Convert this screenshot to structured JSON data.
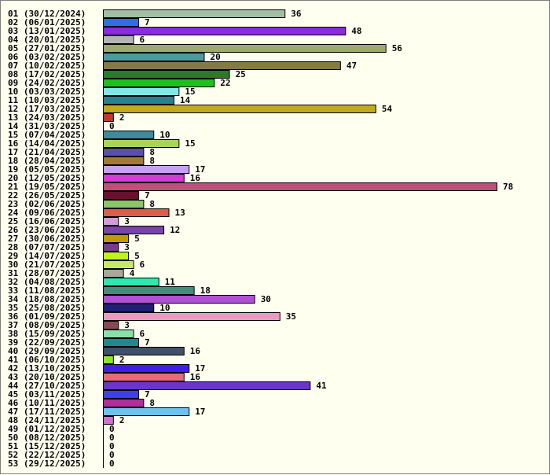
{
  "chart_data": {
    "type": "bar",
    "orientation": "horizontal",
    "categories": [
      "01 (30/12/2024)",
      "02 (06/01/2025)",
      "03 (13/01/2025)",
      "04 (20/01/2025)",
      "05 (27/01/2025)",
      "06 (03/02/2025)",
      "07 (10/02/2025)",
      "08 (17/02/2025)",
      "09 (24/02/2025)",
      "10 (03/03/2025)",
      "11 (10/03/2025)",
      "12 (17/03/2025)",
      "13 (24/03/2025)",
      "14 (31/03/2025)",
      "15 (07/04/2025)",
      "16 (14/04/2025)",
      "17 (21/04/2025)",
      "18 (28/04/2025)",
      "19 (05/05/2025)",
      "20 (12/05/2025)",
      "21 (19/05/2025)",
      "22 (26/05/2025)",
      "23 (02/06/2025)",
      "24 (09/06/2025)",
      "25 (16/06/2025)",
      "26 (23/06/2025)",
      "27 (30/06/2025)",
      "28 (07/07/2025)",
      "29 (14/07/2025)",
      "30 (21/07/2025)",
      "31 (28/07/2025)",
      "32 (04/08/2025)",
      "33 (11/08/2025)",
      "34 (18/08/2025)",
      "35 (25/08/2025)",
      "36 (01/09/2025)",
      "37 (08/09/2025)",
      "38 (15/09/2025)",
      "39 (22/09/2025)",
      "40 (29/09/2025)",
      "41 (06/10/2025)",
      "42 (13/10/2025)",
      "43 (20/10/2025)",
      "44 (27/10/2025)",
      "45 (03/11/2025)",
      "46 (10/11/2025)",
      "47 (17/11/2025)",
      "48 (24/11/2025)",
      "49 (01/12/2025)",
      "50 (08/12/2025)",
      "51 (15/12/2025)",
      "52 (22/12/2025)",
      "53 (29/12/2025)"
    ],
    "values": [
      36,
      7,
      48,
      6,
      56,
      20,
      47,
      25,
      22,
      15,
      14,
      54,
      2,
      0,
      10,
      15,
      8,
      8,
      17,
      16,
      78,
      7,
      8,
      13,
      3,
      12,
      5,
      3,
      5,
      6,
      4,
      11,
      18,
      30,
      10,
      35,
      3,
      6,
      7,
      16,
      2,
      17,
      16,
      41,
      7,
      8,
      17,
      2,
      0,
      0,
      0,
      0,
      0
    ],
    "colors": [
      "#a3bfa3",
      "#2f6ee8",
      "#8a2be2",
      "#b4b4b4",
      "#9caa70",
      "#4a9c9c",
      "#857a45",
      "#2a7a2a",
      "#1fbf1f",
      "#7fe8e8",
      "#27818f",
      "#c2a91d",
      "#c0392b",
      "#ffffff",
      "#3f8a9c",
      "#a8d45a",
      "#5a4fb0",
      "#a07a35",
      "#c99ff0",
      "#d43ad4",
      "#c0507a",
      "#6a0f30",
      "#8cc46a",
      "#d95f4a",
      "#d59ad9",
      "#7a45a8",
      "#c2980f",
      "#7a3a8a",
      "#c0f21f",
      "#c8e86a",
      "#a8a89a",
      "#2fe8b0",
      "#4a8a7a",
      "#b050d4",
      "#1f1f7a",
      "#e89ac0",
      "#8a4a55",
      "#8ae0a8",
      "#1f8a8a",
      "#3f5068",
      "#8ae81f",
      "#3f1fe8",
      "#e86a7a",
      "#6a35c8",
      "#3f3fe8",
      "#b02f9c",
      "#6ac4f0",
      "#d470d4",
      "#ffffff",
      "#ffffff",
      "#ffffff",
      "#ffffff",
      "#ffffff"
    ],
    "xlim": [
      0,
      78
    ],
    "grid": false,
    "legend": "none"
  }
}
